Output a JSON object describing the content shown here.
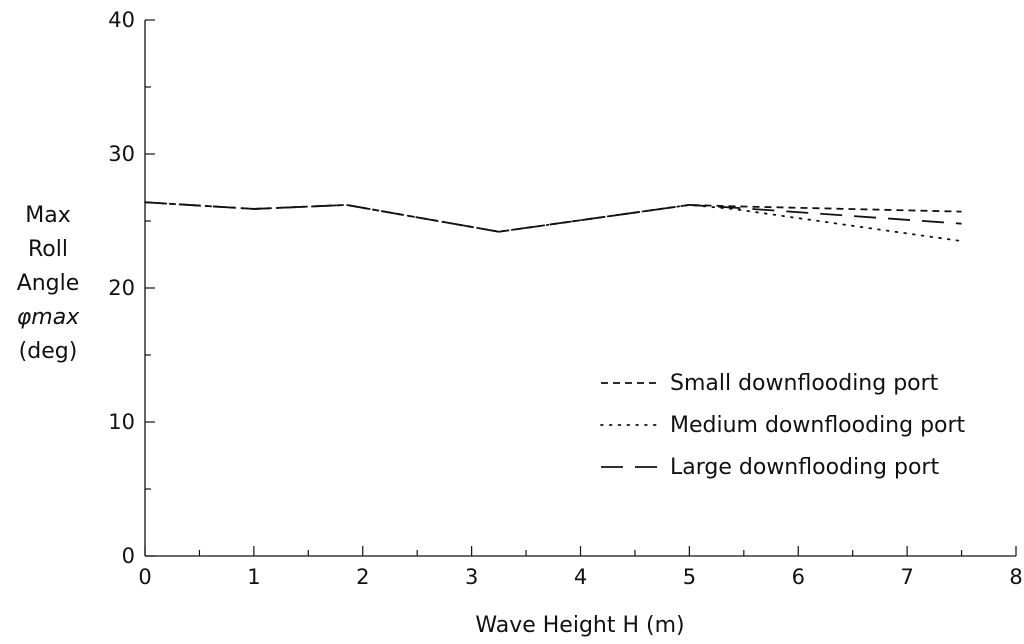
{
  "chart_data": {
    "type": "line",
    "title": "",
    "xlabel": "Wave Height H (m)",
    "ylabel_lines": [
      "Max",
      "Roll",
      "Angle",
      "φmax",
      "(deg)"
    ],
    "xlim": [
      0,
      8
    ],
    "ylim": [
      0,
      40
    ],
    "x_ticks": [
      0,
      1,
      2,
      3,
      4,
      5,
      6,
      7,
      8
    ],
    "y_ticks": [
      0,
      10,
      20,
      30,
      40
    ],
    "grid": false,
    "legend_position": "lower-right",
    "series": [
      {
        "name": "Small downflooding port",
        "line_style": "dashed",
        "x": [
          0,
          1,
          1.85,
          3.25,
          5,
          5.4,
          7.5
        ],
        "y": [
          26.4,
          25.9,
          26.2,
          24.2,
          26.2,
          26.1,
          25.7
        ]
      },
      {
        "name": "Medium downflooding port",
        "line_style": "dotted",
        "x": [
          0,
          1,
          1.85,
          3.25,
          5,
          5.4,
          7.5
        ],
        "y": [
          26.4,
          25.9,
          26.2,
          24.2,
          26.2,
          25.9,
          23.5
        ]
      },
      {
        "name": "Large downflooding port",
        "line_style": "longdash",
        "x": [
          0,
          1,
          1.85,
          3.25,
          5,
          5.4,
          7.5
        ],
        "y": [
          26.4,
          25.9,
          26.2,
          24.2,
          26.2,
          26.0,
          24.8
        ]
      }
    ]
  }
}
